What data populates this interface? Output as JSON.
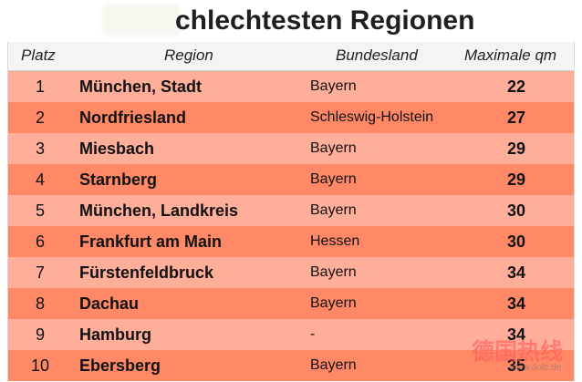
{
  "title": "chlechtesten Regionen",
  "headers": {
    "platz": "Platz",
    "region": "Region",
    "bundesland": "Bundesland",
    "qm": "Maximale qm"
  },
  "rows": [
    {
      "platz": "1",
      "region": "München, Stadt",
      "bundesland": "Bayern",
      "qm": "22"
    },
    {
      "platz": "2",
      "region": "Nordfriesland",
      "bundesland": "Schleswig-Holstein",
      "qm": "27"
    },
    {
      "platz": "3",
      "region": "Miesbach",
      "bundesland": "Bayern",
      "qm": "29"
    },
    {
      "platz": "4",
      "region": "Starnberg",
      "bundesland": "Bayern",
      "qm": "29"
    },
    {
      "platz": "5",
      "region": "München, Landkreis",
      "bundesland": "Bayern",
      "qm": "30"
    },
    {
      "platz": "6",
      "region": "Frankfurt am Main",
      "bundesland": "Hessen",
      "qm": "30"
    },
    {
      "platz": "7",
      "region": "Fürstenfeldbruck",
      "bundesland": "Bayern",
      "qm": "34"
    },
    {
      "platz": "8",
      "region": "Dachau",
      "bundesland": "Bayern",
      "qm": "34"
    },
    {
      "platz": "9",
      "region": "Hamburg",
      "bundesland": "-",
      "qm": "34"
    },
    {
      "platz": "10",
      "region": "Ebersberg",
      "bundesland": "Bayern",
      "qm": "35"
    }
  ],
  "watermark": {
    "main": "德国热线",
    "url": "www.dolc.de"
  },
  "colors": {
    "row_light": "#ffae9a",
    "row_dark": "#ff8866",
    "header_bg": "#f4f4f4"
  }
}
